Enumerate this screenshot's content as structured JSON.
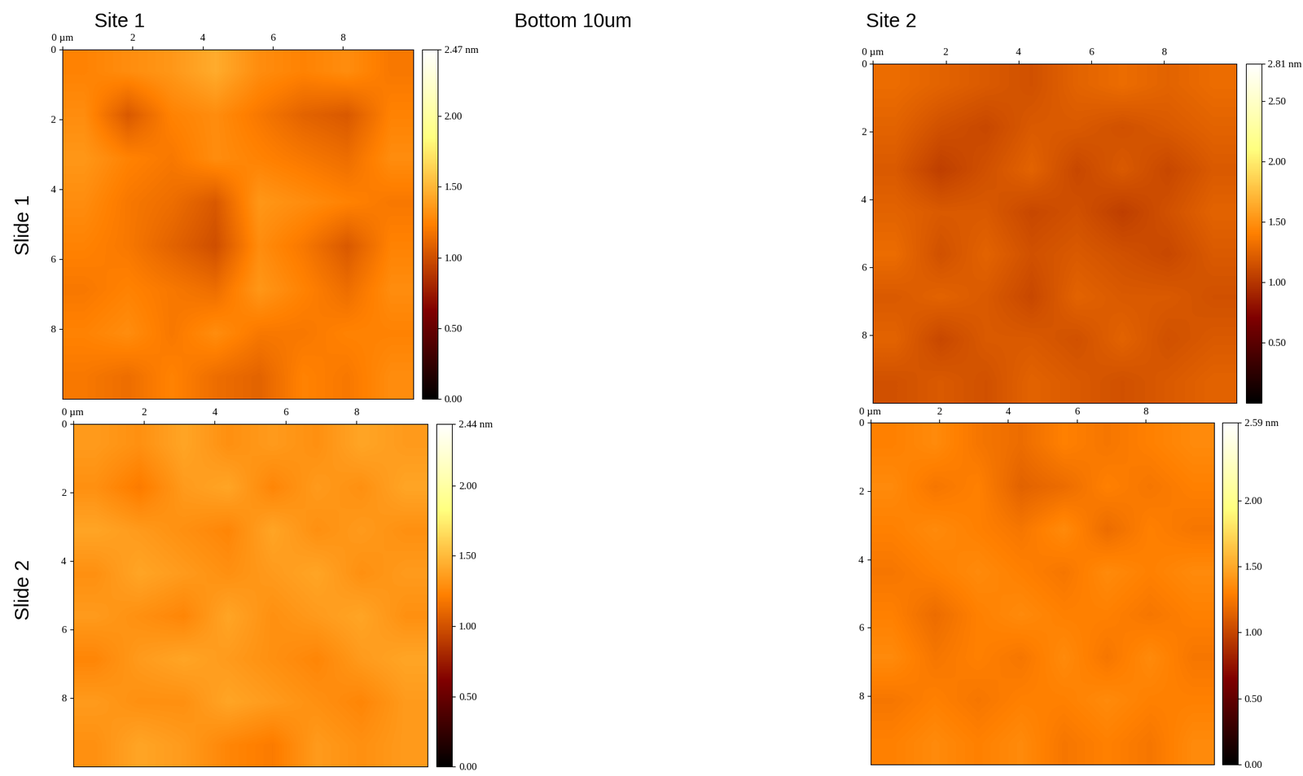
{
  "heading": "Bottom 10um",
  "column_titles": [
    "Site 1",
    "Site 2"
  ],
  "row_titles": [
    "Slide 1",
    "Slide 2"
  ],
  "chart_data": [
    {
      "type": "heatmap",
      "row": 0,
      "column": 0,
      "xlim": [
        0,
        10
      ],
      "ylim": [
        10,
        0
      ],
      "xticks": [
        {
          "value": 0,
          "label": "0 µm"
        },
        2,
        4,
        6,
        8
      ],
      "yticks": [
        0,
        2,
        4,
        6,
        8
      ],
      "cells": [
        [
          1.25,
          1.3,
          1.35,
          1.45,
          1.3,
          1.25,
          1.3,
          1.2
        ],
        [
          1.3,
          1.05,
          1.25,
          1.3,
          1.2,
          1.1,
          1.05,
          1.25
        ],
        [
          1.35,
          1.25,
          1.2,
          1.3,
          1.25,
          1.2,
          1.15,
          1.3
        ],
        [
          1.3,
          1.2,
          1.15,
          1.05,
          1.35,
          1.3,
          1.25,
          1.2
        ],
        [
          1.25,
          1.2,
          1.1,
          1.0,
          1.3,
          1.2,
          1.05,
          1.25
        ],
        [
          1.2,
          1.25,
          1.2,
          1.15,
          1.35,
          1.25,
          1.15,
          1.3
        ],
        [
          1.25,
          1.3,
          1.2,
          1.3,
          1.2,
          1.2,
          1.25,
          1.25
        ],
        [
          1.2,
          1.15,
          1.25,
          1.15,
          1.1,
          1.25,
          1.2,
          1.3
        ]
      ],
      "colorbar": {
        "range": [
          0,
          2.47
        ],
        "ticks": [
          {
            "value": 0,
            "label": "0.00"
          },
          {
            "value": 0.5,
            "label": "0.50"
          },
          {
            "value": 1,
            "label": "1.00"
          },
          {
            "value": 1.5,
            "label": "1.50"
          },
          {
            "value": 2,
            "label": "2.00"
          },
          {
            "value": 2.47,
            "label": "2.47 nm"
          }
        ]
      }
    },
    {
      "type": "heatmap",
      "row": 0,
      "column": 1,
      "xlim": [
        0,
        10
      ],
      "ylim": [
        10,
        0
      ],
      "xticks": [
        {
          "value": 0,
          "label": "0 µm"
        },
        2,
        4,
        6,
        8
      ],
      "yticks": [
        0,
        2,
        4,
        6,
        8
      ],
      "cells": [
        [
          1.3,
          1.25,
          1.2,
          1.15,
          1.25,
          1.3,
          1.25,
          1.3
        ],
        [
          1.25,
          1.15,
          1.1,
          1.2,
          1.2,
          1.15,
          1.2,
          1.25
        ],
        [
          1.2,
          1.05,
          1.15,
          1.25,
          1.1,
          1.2,
          1.1,
          1.2
        ],
        [
          1.25,
          1.2,
          1.2,
          1.1,
          1.15,
          1.05,
          1.15,
          1.25
        ],
        [
          1.3,
          1.15,
          1.25,
          1.15,
          1.2,
          1.15,
          1.1,
          1.2
        ],
        [
          1.2,
          1.25,
          1.2,
          1.1,
          1.25,
          1.2,
          1.2,
          1.15
        ],
        [
          1.25,
          1.1,
          1.2,
          1.2,
          1.15,
          1.25,
          1.15,
          1.2
        ],
        [
          1.15,
          1.2,
          1.15,
          1.25,
          1.2,
          1.15,
          1.2,
          1.25
        ]
      ],
      "colorbar": {
        "range": [
          0,
          2.81
        ],
        "ticks": [
          {
            "value": 0.5,
            "label": "0.50"
          },
          {
            "value": 1,
            "label": "1.00"
          },
          {
            "value": 1.5,
            "label": "1.50"
          },
          {
            "value": 2,
            "label": "2.00"
          },
          {
            "value": 2.5,
            "label": "2.50"
          },
          {
            "value": 2.81,
            "label": "2.81 nm"
          }
        ]
      }
    },
    {
      "type": "heatmap",
      "row": 1,
      "column": 0,
      "xlim": [
        0,
        10
      ],
      "ylim": [
        10,
        0
      ],
      "xticks": [
        {
          "value": 0,
          "label": "0 µm"
        },
        2,
        4,
        6,
        8
      ],
      "yticks": [
        0,
        2,
        4,
        6,
        8
      ],
      "cells": [
        [
          1.35,
          1.3,
          1.4,
          1.3,
          1.35,
          1.3,
          1.4,
          1.35
        ],
        [
          1.3,
          1.2,
          1.35,
          1.4,
          1.25,
          1.35,
          1.3,
          1.4
        ],
        [
          1.4,
          1.35,
          1.3,
          1.25,
          1.4,
          1.3,
          1.35,
          1.3
        ],
        [
          1.3,
          1.4,
          1.35,
          1.3,
          1.35,
          1.4,
          1.3,
          1.35
        ],
        [
          1.35,
          1.3,
          1.25,
          1.4,
          1.3,
          1.35,
          1.4,
          1.3
        ],
        [
          1.25,
          1.35,
          1.4,
          1.35,
          1.3,
          1.25,
          1.35,
          1.4
        ],
        [
          1.35,
          1.3,
          1.3,
          1.4,
          1.35,
          1.3,
          1.25,
          1.35
        ],
        [
          1.3,
          1.4,
          1.35,
          1.25,
          1.2,
          1.35,
          1.3,
          1.35
        ]
      ],
      "colorbar": {
        "range": [
          0,
          2.44
        ],
        "ticks": [
          {
            "value": 0,
            "label": "0.00"
          },
          {
            "value": 0.5,
            "label": "0.50"
          },
          {
            "value": 1,
            "label": "1.00"
          },
          {
            "value": 1.5,
            "label": "1.50"
          },
          {
            "value": 2,
            "label": "2.00"
          },
          {
            "value": 2.44,
            "label": "2.44 nm"
          }
        ]
      }
    },
    {
      "type": "heatmap",
      "row": 1,
      "column": 1,
      "xlim": [
        0,
        10
      ],
      "ylim": [
        10,
        0
      ],
      "xticks": [
        {
          "value": 0,
          "label": "0 µm"
        },
        2,
        4,
        6,
        8
      ],
      "yticks": [
        0,
        2,
        4,
        6,
        8
      ],
      "cells": [
        [
          1.3,
          1.35,
          1.25,
          1.2,
          1.3,
          1.25,
          1.3,
          1.35
        ],
        [
          1.35,
          1.25,
          1.3,
          1.15,
          1.2,
          1.3,
          1.25,
          1.3
        ],
        [
          1.3,
          1.35,
          1.3,
          1.25,
          1.35,
          1.2,
          1.3,
          1.25
        ],
        [
          1.25,
          1.3,
          1.35,
          1.3,
          1.25,
          1.35,
          1.3,
          1.35
        ],
        [
          1.3,
          1.2,
          1.3,
          1.35,
          1.3,
          1.3,
          1.25,
          1.3
        ],
        [
          1.35,
          1.25,
          1.3,
          1.25,
          1.35,
          1.25,
          1.35,
          1.25
        ],
        [
          1.25,
          1.3,
          1.25,
          1.3,
          1.3,
          1.35,
          1.3,
          1.3
        ],
        [
          1.3,
          1.35,
          1.3,
          1.35,
          1.25,
          1.3,
          1.25,
          1.35
        ]
      ],
      "colorbar": {
        "range": [
          0,
          2.59
        ],
        "ticks": [
          {
            "value": 0,
            "label": "0.00"
          },
          {
            "value": 0.5,
            "label": "0.50"
          },
          {
            "value": 1,
            "label": "1.00"
          },
          {
            "value": 1.5,
            "label": "1.50"
          },
          {
            "value": 2,
            "label": "2.00"
          },
          {
            "value": 2.59,
            "label": "2.59 nm"
          }
        ]
      }
    }
  ]
}
